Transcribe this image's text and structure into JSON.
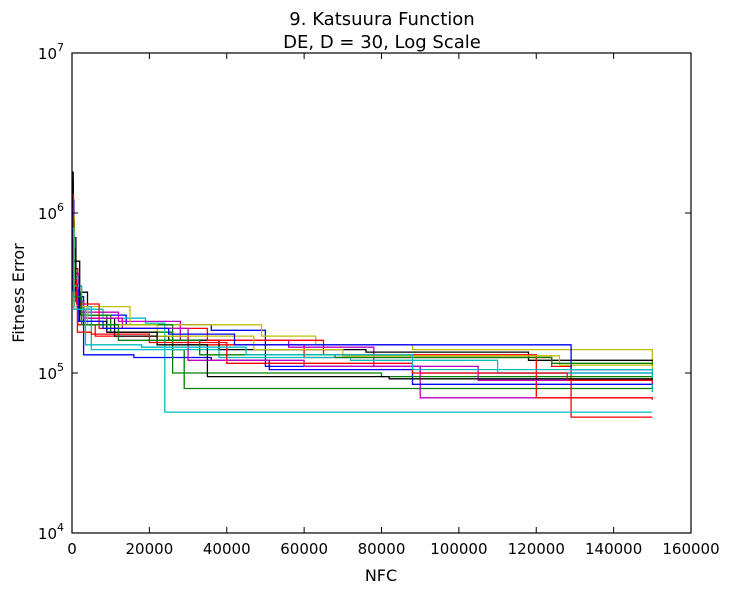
{
  "chart_data": {
    "type": "line",
    "title": "9.   Katsuura Function",
    "subtitle": "DE, D = 30, Log Scale",
    "xlabel": "NFC",
    "ylabel": "Fitness Error",
    "xlim": [
      0,
      160000
    ],
    "ylim": [
      10000,
      10000000
    ],
    "yscale": "log",
    "grid": false,
    "legend": "none",
    "xticks": [
      "0",
      "20000",
      "40000",
      "60000",
      "80000",
      "100000",
      "120000",
      "140000",
      "160000"
    ],
    "xtick_values": [
      0,
      20000,
      40000,
      60000,
      80000,
      100000,
      120000,
      140000,
      160000
    ],
    "yticks": [
      {
        "base": "10",
        "exp": "4",
        "value": 10000
      },
      {
        "base": "10",
        "exp": "5",
        "value": 100000
      },
      {
        "base": "10",
        "exp": "6",
        "value": 1000000
      },
      {
        "base": "10",
        "exp": "7",
        "value": 10000000
      }
    ],
    "series": [
      {
        "color": "#0000ff",
        "points": [
          [
            0,
            1500000
          ],
          [
            300,
            600000
          ],
          [
            900,
            300000
          ],
          [
            2000,
            250000
          ],
          [
            5000,
            230000
          ],
          [
            14000,
            200000
          ],
          [
            36000,
            185000
          ],
          [
            50000,
            110000
          ],
          [
            90000,
            100000
          ],
          [
            150000,
            98000
          ]
        ]
      },
      {
        "color": "#008000",
        "points": [
          [
            0,
            1300000
          ],
          [
            300,
            500000
          ],
          [
            900,
            280000
          ],
          [
            3000,
            230000
          ],
          [
            10000,
            180000
          ],
          [
            26000,
            140000
          ],
          [
            29000,
            80000
          ],
          [
            150000,
            80000
          ]
        ]
      },
      {
        "color": "#ff0000",
        "points": [
          [
            0,
            1400000
          ],
          [
            300,
            450000
          ],
          [
            1500,
            200000
          ],
          [
            6000,
            170000
          ],
          [
            30000,
            150000
          ],
          [
            60000,
            125000
          ],
          [
            124000,
            110000
          ],
          [
            129000,
            53000
          ],
          [
            150000,
            53000
          ]
        ]
      },
      {
        "color": "#00bfbf",
        "points": [
          [
            0,
            1200000
          ],
          [
            400,
            400000
          ],
          [
            1500,
            250000
          ],
          [
            8000,
            220000
          ],
          [
            19000,
            205000
          ],
          [
            24000,
            57000
          ],
          [
            150000,
            57000
          ]
        ]
      },
      {
        "color": "#bf00bf",
        "points": [
          [
            0,
            1100000
          ],
          [
            400,
            420000
          ],
          [
            1800,
            240000
          ],
          [
            12000,
            210000
          ],
          [
            28000,
            160000
          ],
          [
            56000,
            145000
          ],
          [
            78000,
            110000
          ],
          [
            90000,
            70000
          ],
          [
            150000,
            70000
          ]
        ]
      },
      {
        "color": "#bfbf00",
        "points": [
          [
            0,
            1000000
          ],
          [
            300,
            350000
          ],
          [
            2000,
            260000
          ],
          [
            15000,
            200000
          ],
          [
            49000,
            170000
          ],
          [
            63000,
            150000
          ],
          [
            88000,
            140000
          ],
          [
            150000,
            105000
          ]
        ]
      },
      {
        "color": "#000000",
        "points": [
          [
            0,
            1800000
          ],
          [
            300,
            700000
          ],
          [
            1000,
            320000
          ],
          [
            4000,
            220000
          ],
          [
            11000,
            170000
          ],
          [
            25000,
            160000
          ],
          [
            38000,
            140000
          ],
          [
            76000,
            135000
          ],
          [
            118000,
            120000
          ],
          [
            150000,
            118000
          ]
        ]
      },
      {
        "color": "#0000ff",
        "points": [
          [
            0,
            1200000
          ],
          [
            500,
            300000
          ],
          [
            3000,
            130000
          ],
          [
            16000,
            125000
          ],
          [
            36000,
            120000
          ],
          [
            51000,
            105000
          ],
          [
            88000,
            85000
          ],
          [
            150000,
            80000
          ]
        ]
      },
      {
        "color": "#008000",
        "points": [
          [
            0,
            1000000
          ],
          [
            400,
            320000
          ],
          [
            2200,
            230000
          ],
          [
            9000,
            200000
          ],
          [
            26000,
            100000
          ],
          [
            80000,
            95000
          ],
          [
            150000,
            92000
          ]
        ]
      },
      {
        "color": "#ff0000",
        "points": [
          [
            0,
            1500000
          ],
          [
            300,
            380000
          ],
          [
            1200,
            270000
          ],
          [
            7000,
            190000
          ],
          [
            35000,
            160000
          ],
          [
            65000,
            130000
          ],
          [
            120000,
            70000
          ],
          [
            150000,
            68000
          ]
        ]
      },
      {
        "color": "#00bfbf",
        "points": [
          [
            0,
            1000000
          ],
          [
            400,
            350000
          ],
          [
            2500,
            260000
          ],
          [
            5000,
            140000
          ],
          [
            38000,
            125000
          ],
          [
            72000,
            120000
          ],
          [
            110000,
            100000
          ],
          [
            150000,
            76000
          ]
        ]
      },
      {
        "color": "#bf00bf",
        "points": [
          [
            0,
            900000
          ],
          [
            500,
            280000
          ],
          [
            3000,
            220000
          ],
          [
            13000,
            190000
          ],
          [
            30000,
            120000
          ],
          [
            60000,
            110000
          ],
          [
            105000,
            90000
          ],
          [
            150000,
            85000
          ]
        ]
      },
      {
        "color": "#bfbf00",
        "points": [
          [
            0,
            950000
          ],
          [
            600,
            260000
          ],
          [
            4000,
            200000
          ],
          [
            22000,
            170000
          ],
          [
            47000,
            140000
          ],
          [
            70000,
            128000
          ],
          [
            126000,
            112000
          ],
          [
            150000,
            110000
          ]
        ]
      },
      {
        "color": "#000000",
        "points": [
          [
            0,
            1600000
          ],
          [
            300,
            500000
          ],
          [
            2000,
            210000
          ],
          [
            9000,
            180000
          ],
          [
            22000,
            150000
          ],
          [
            35000,
            95000
          ],
          [
            82000,
            92000
          ],
          [
            150000,
            90000
          ]
        ]
      },
      {
        "color": "#0000ff",
        "points": [
          [
            0,
            1100000
          ],
          [
            300,
            330000
          ],
          [
            1600,
            210000
          ],
          [
            8000,
            190000
          ],
          [
            25000,
            175000
          ],
          [
            42000,
            150000
          ],
          [
            88000,
            150000
          ],
          [
            129000,
            105000
          ],
          [
            150000,
            103000
          ]
        ]
      },
      {
        "color": "#008000",
        "points": [
          [
            0,
            900000
          ],
          [
            500,
            300000
          ],
          [
            2500,
            200000
          ],
          [
            12000,
            160000
          ],
          [
            33000,
            130000
          ],
          [
            68000,
            125000
          ],
          [
            124000,
            115000
          ],
          [
            150000,
            112000
          ]
        ]
      },
      {
        "color": "#ff0000",
        "points": [
          [
            0,
            1300000
          ],
          [
            400,
            360000
          ],
          [
            1400,
            180000
          ],
          [
            5000,
            175000
          ],
          [
            20000,
            155000
          ],
          [
            40000,
            115000
          ],
          [
            88000,
            100000
          ],
          [
            128000,
            90000
          ],
          [
            150000,
            88000
          ]
        ]
      },
      {
        "color": "#00bfbf",
        "points": [
          [
            0,
            800000
          ],
          [
            500,
            250000
          ],
          [
            3500,
            150000
          ],
          [
            18000,
            145000
          ],
          [
            45000,
            130000
          ],
          [
            88000,
            105000
          ],
          [
            150000,
            96000
          ]
        ]
      }
    ]
  }
}
